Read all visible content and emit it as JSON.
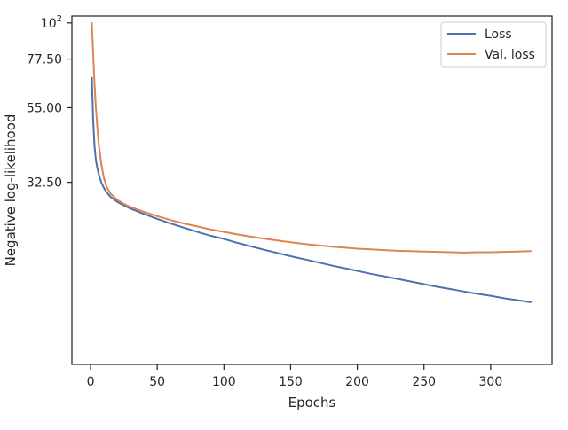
{
  "chart_data": {
    "type": "line",
    "title": "",
    "xlabel": "Epochs",
    "ylabel": "Negative log-likelihood",
    "xlim": [
      -14,
      346
    ],
    "ylim": [
      9,
      105
    ],
    "y_scale": "log",
    "x_ticks": [
      0,
      50,
      100,
      150,
      200,
      250,
      300
    ],
    "y_ticks": [
      {
        "value": 100,
        "label": "10",
        "sup": "2"
      },
      {
        "value": 77.5,
        "label": "77.50",
        "sup": ""
      },
      {
        "value": 55.0,
        "label": "55.00",
        "sup": ""
      },
      {
        "value": 32.5,
        "label": "32.50",
        "sup": ""
      }
    ],
    "grid": false,
    "legend_position": "top-right",
    "series": [
      {
        "name": "Loss",
        "color": "#4c72b0",
        "x": [
          1,
          2,
          3,
          4,
          5,
          6,
          8,
          10,
          12,
          15,
          20,
          25,
          30,
          40,
          50,
          60,
          70,
          80,
          90,
          100,
          110,
          120,
          130,
          140,
          150,
          160,
          170,
          180,
          190,
          200,
          210,
          220,
          230,
          240,
          250,
          260,
          270,
          280,
          290,
          300,
          310,
          320,
          330
        ],
        "y": [
          68,
          50,
          42,
          38,
          36,
          34.5,
          32.5,
          31.2,
          30.3,
          29.3,
          28.3,
          27.6,
          27.0,
          26.0,
          25.1,
          24.3,
          23.6,
          22.9,
          22.3,
          21.8,
          21.2,
          20.7,
          20.2,
          19.75,
          19.3,
          18.9,
          18.5,
          18.1,
          17.75,
          17.4,
          17.05,
          16.75,
          16.45,
          16.15,
          15.85,
          15.55,
          15.3,
          15.05,
          14.8,
          14.6,
          14.35,
          14.15,
          13.95
        ]
      },
      {
        "name": "Val. loss",
        "color": "#dd8452",
        "x": [
          1,
          2,
          3,
          4,
          5,
          6,
          8,
          10,
          12,
          15,
          20,
          25,
          30,
          40,
          50,
          60,
          70,
          80,
          90,
          100,
          110,
          120,
          130,
          140,
          150,
          160,
          170,
          180,
          190,
          200,
          210,
          220,
          230,
          240,
          250,
          260,
          270,
          280,
          290,
          300,
          310,
          320,
          330
        ],
        "y": [
          100,
          80,
          65,
          55,
          48,
          43,
          37,
          33.5,
          31.5,
          30.0,
          28.7,
          27.9,
          27.3,
          26.4,
          25.6,
          24.9,
          24.3,
          23.8,
          23.3,
          22.9,
          22.5,
          22.15,
          21.85,
          21.55,
          21.3,
          21.05,
          20.85,
          20.65,
          20.5,
          20.35,
          20.25,
          20.15,
          20.05,
          20.0,
          19.95,
          19.9,
          19.85,
          19.8,
          19.85,
          19.85,
          19.9,
          19.95,
          20.0
        ]
      }
    ]
  }
}
